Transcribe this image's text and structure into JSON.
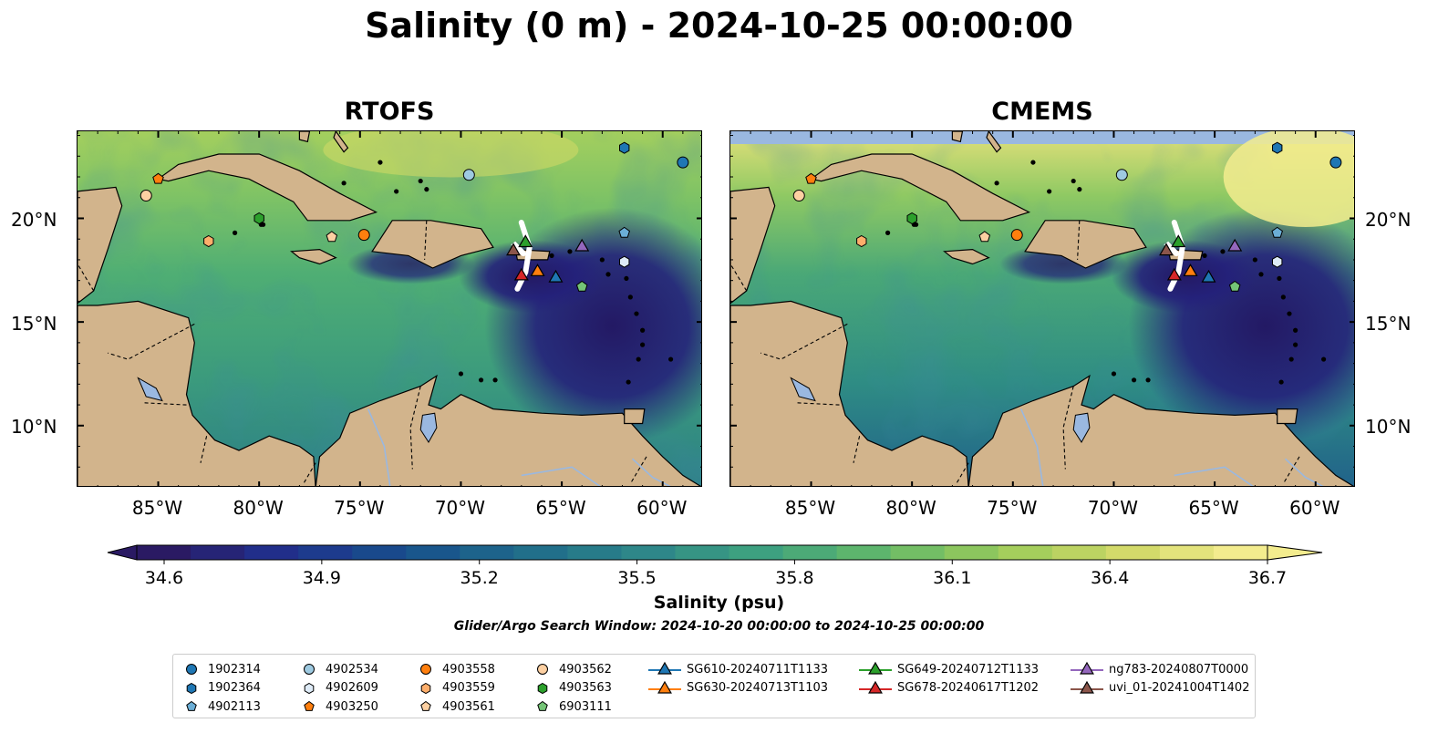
{
  "title": "Salinity (0 m) - 2024-10-25 00:00:00",
  "panels": [
    {
      "title": "RTOFS"
    },
    {
      "title": "CMEMS"
    }
  ],
  "axes": {
    "lon_ticks": [
      "85°W",
      "80°W",
      "75°W",
      "70°W",
      "65°W",
      "60°W"
    ],
    "lat_ticks": [
      "20°N",
      "15°N",
      "10°N"
    ]
  },
  "colorbar": {
    "label": "Salinity (psu)",
    "ticks": [
      "34.6",
      "34.9",
      "35.2",
      "35.5",
      "35.8",
      "36.1",
      "36.4",
      "36.7"
    ],
    "range": [
      34.6,
      36.7
    ],
    "colormap": "haline",
    "colors": [
      "#2a1a63",
      "#20308e",
      "#174f8c",
      "#1f6b8a",
      "#2d8689",
      "#3ea17f",
      "#62b86a",
      "#9acb5a",
      "#cfd866",
      "#f3ec8e"
    ]
  },
  "search_window": "Glider/Argo Search Window: 2024-10-20 00:00:00 to 2024-10-25 00:00:00",
  "colors": {
    "land": "#d2b48c",
    "lake": "#9ab8e0",
    "blue": "#1f77b4",
    "light_blue": "#9ecae1",
    "orange": "#ff7f0e",
    "light_orange": "#fdae6b",
    "peach": "#fdd0a2",
    "green": "#2ca02c",
    "red": "#d62728",
    "purple": "#9467bd",
    "brown": "#8c564b"
  },
  "legend": [
    {
      "label": "1902314",
      "marker": "circle",
      "color": "#1f77b4"
    },
    {
      "label": "1902364",
      "marker": "hexagon",
      "color": "#1f77b4"
    },
    {
      "label": "4902113",
      "marker": "pentagon",
      "color": "#6baed6"
    },
    {
      "label": "4902534",
      "marker": "circle",
      "color": "#9ecae1"
    },
    {
      "label": "4902609",
      "marker": "hexagon",
      "color": "#deebf7"
    },
    {
      "label": "4903250",
      "marker": "pentagon",
      "color": "#ff7f0e"
    },
    {
      "label": "4903558",
      "marker": "circle",
      "color": "#ff7f0e"
    },
    {
      "label": "4903559",
      "marker": "hexagon",
      "color": "#fdae6b"
    },
    {
      "label": "4903561",
      "marker": "pentagon",
      "color": "#fdd0a2"
    },
    {
      "label": "4903562",
      "marker": "circle",
      "color": "#fdd0a2"
    },
    {
      "label": "4903563",
      "marker": "hexagon",
      "color": "#2ca02c"
    },
    {
      "label": "6903111",
      "marker": "pentagon",
      "color": "#74c476"
    },
    {
      "label": "SG610-20240711T1133",
      "marker": "triangle-line",
      "color": "#1f77b4"
    },
    {
      "label": "SG630-20240713T1103",
      "marker": "triangle-line",
      "color": "#ff7f0e"
    },
    {
      "label": "SG649-20240712T1133",
      "marker": "triangle-line",
      "color": "#2ca02c"
    },
    {
      "label": "SG678-20240617T1202",
      "marker": "triangle-line",
      "color": "#d62728"
    },
    {
      "label": "ng783-20240807T0000",
      "marker": "triangle-line",
      "color": "#9467bd"
    },
    {
      "label": "uvi_01-20241004T1402",
      "marker": "triangle-line",
      "color": "#8c564b"
    }
  ],
  "floats": [
    {
      "id": "1902314",
      "marker": "circle",
      "color": "#1f77b4",
      "lon": -59.0,
      "lat": 22.7
    },
    {
      "id": "1902364",
      "marker": "hexagon",
      "color": "#1f77b4",
      "lon": -61.9,
      "lat": 23.4
    },
    {
      "id": "4902113",
      "marker": "pentagon",
      "color": "#6baed6",
      "lon": -61.9,
      "lat": 19.3
    },
    {
      "id": "4902534",
      "marker": "circle",
      "color": "#9ecae1",
      "lon": -69.6,
      "lat": 22.1
    },
    {
      "id": "4902609",
      "marker": "hexagon",
      "color": "#deebf7",
      "lon": -61.9,
      "lat": 17.9
    },
    {
      "id": "4903250",
      "marker": "pentagon",
      "color": "#ff7f0e",
      "lon": -85.0,
      "lat": 21.9
    },
    {
      "id": "4903558",
      "marker": "circle",
      "color": "#ff7f0e",
      "lon": -74.8,
      "lat": 19.2
    },
    {
      "id": "4903559",
      "marker": "hexagon",
      "color": "#fdae6b",
      "lon": -82.5,
      "lat": 18.9
    },
    {
      "id": "4903561",
      "marker": "pentagon",
      "color": "#fdd0a2",
      "lon": -76.4,
      "lat": 19.1
    },
    {
      "id": "4903562",
      "marker": "circle",
      "color": "#fdd0a2",
      "lon": -85.6,
      "lat": 21.1
    },
    {
      "id": "4903563",
      "marker": "hexagon",
      "color": "#2ca02c",
      "lon": -80.0,
      "lat": 20.0
    },
    {
      "id": "6903111",
      "marker": "pentagon",
      "color": "#74c476",
      "lon": -64.0,
      "lat": 16.7
    }
  ],
  "gliders": [
    {
      "id": "SG610-20240711T1133",
      "color": "#1f77b4",
      "lon": -65.3,
      "lat": 17.2
    },
    {
      "id": "SG630-20240713T1103",
      "color": "#ff7f0e",
      "lon": -66.2,
      "lat": 17.5
    },
    {
      "id": "SG649-20240712T1133",
      "color": "#2ca02c",
      "lon": -66.8,
      "lat": 18.9
    },
    {
      "id": "SG678-20240617T1202",
      "color": "#d62728",
      "lon": -67.0,
      "lat": 17.3
    },
    {
      "id": "ng783-20240807T0000",
      "color": "#9467bd",
      "lon": -64.0,
      "lat": 18.7
    },
    {
      "id": "uvi_01-20241004T1402",
      "color": "#8c564b",
      "lon": -67.4,
      "lat": 18.5
    }
  ],
  "glider_tracks": [
    {
      "lon": [
        -67.0,
        -66.6,
        -66.8,
        -67.2
      ],
      "lat": [
        19.8,
        18.6,
        17.4,
        16.6
      ]
    },
    {
      "lon": [
        -67.2,
        -67.4,
        -66.9
      ],
      "lat": [
        18.5,
        18.8,
        18.3
      ]
    }
  ],
  "extent": {
    "lon": [
      -89.0,
      -58.0
    ],
    "lat": [
      7.0,
      24.2
    ]
  }
}
